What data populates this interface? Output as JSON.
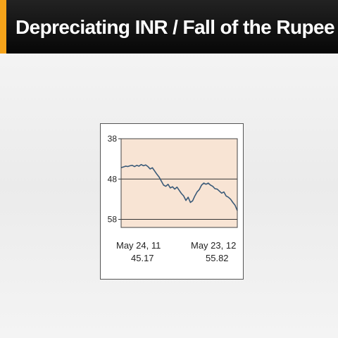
{
  "slide": {
    "title": "Depreciating INR / Fall of the Rupee",
    "accent_color": "#f5a31a"
  },
  "chart_data": {
    "type": "line",
    "title": "",
    "xlabel": "",
    "ylabel": "",
    "y_inverted": true,
    "ylim": [
      38,
      60
    ],
    "y_ticks": [
      38,
      48,
      58
    ],
    "grid": true,
    "plot_background": "#f8e4d4",
    "line_color": "#3a5a78",
    "x_start": {
      "date": "May 24, 11",
      "value": "45.17"
    },
    "x_end": {
      "date": "May 23, 12",
      "value": "55.82"
    },
    "series": [
      {
        "values": [
          45.17,
          45.0,
          44.8,
          44.9,
          44.7,
          44.6,
          44.9,
          44.6,
          44.8,
          44.4,
          44.7,
          44.5,
          44.9,
          45.5,
          45.2,
          46.0,
          46.8,
          47.5,
          48.5,
          49.5,
          49.8,
          49.3,
          50.2,
          49.9,
          50.5,
          50.0,
          50.8,
          51.6,
          52.2,
          53.3,
          52.5,
          53.8,
          53.4,
          52.2,
          51.2,
          50.6,
          49.5,
          49.0,
          49.3,
          49.0,
          49.5,
          49.8,
          50.4,
          50.5,
          51.0,
          51.5,
          51.2,
          52.2,
          52.5,
          53.0,
          53.8,
          54.5,
          55.82
        ]
      }
    ]
  }
}
